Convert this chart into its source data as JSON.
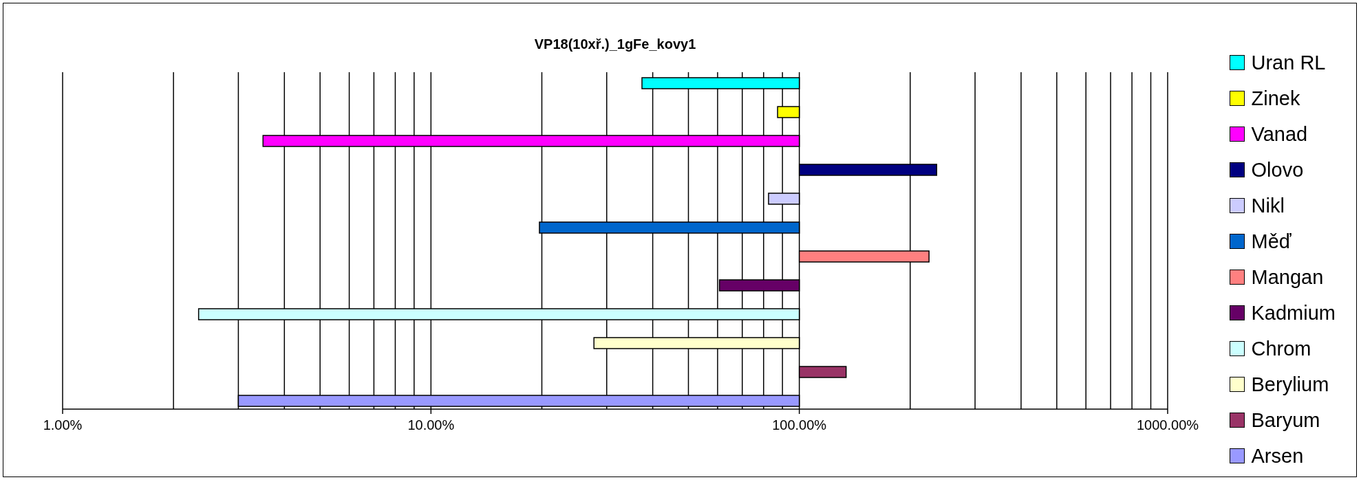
{
  "chart_data": {
    "type": "bar",
    "title": "VP18(10xř.)_1gFe_kovy1",
    "orientation": "horizontal",
    "log": "x",
    "categories": [
      null
    ],
    "xlim": [
      1,
      1000
    ],
    "xticks": [
      {
        "value": 1,
        "label": "1.00%"
      },
      {
        "value": 2,
        "label": null
      },
      {
        "value": 3,
        "label": null
      },
      {
        "value": 4,
        "label": null
      },
      {
        "value": 5,
        "label": null
      },
      {
        "value": 6,
        "label": null
      },
      {
        "value": 7,
        "label": null
      },
      {
        "value": 8,
        "label": null
      },
      {
        "value": 9,
        "label": null
      },
      {
        "value": 10,
        "label": "10.00%"
      },
      {
        "value": 20,
        "label": null
      },
      {
        "value": 30,
        "label": null
      },
      {
        "value": 40,
        "label": null
      },
      {
        "value": 50,
        "label": null
      },
      {
        "value": 60,
        "label": null
      },
      {
        "value": 70,
        "label": null
      },
      {
        "value": 80,
        "label": null
      },
      {
        "value": 90,
        "label": null
      },
      {
        "value": 100,
        "label": "100.00%"
      },
      {
        "value": 200,
        "label": null
      },
      {
        "value": 300,
        "label": null
      },
      {
        "value": 400,
        "label": null
      },
      {
        "value": 500,
        "label": null
      },
      {
        "value": 600,
        "label": null
      },
      {
        "value": 700,
        "label": null
      },
      {
        "value": 800,
        "label": null
      },
      {
        "value": 900,
        "label": null
      },
      {
        "value": 1000,
        "label": "1000.00%"
      }
    ],
    "grid": "x",
    "legend": "right",
    "tick_labels": "x",
    "series": [
      {
        "name": "Uran RL",
        "color": "#00ffff",
        "base": [
          100
        ],
        "values": [
          -62.6
        ]
      },
      {
        "name": "Zinek",
        "color": "#ffff00",
        "base": [
          100
        ],
        "values": [
          -12.7
        ]
      },
      {
        "name": "Vanad",
        "color": "#ff00ff",
        "base": [
          100
        ],
        "values": [
          -96.5
        ]
      },
      {
        "name": "Olovo",
        "color": "#000080",
        "base": [
          100
        ],
        "values": [
          136
        ]
      },
      {
        "name": "Nikl",
        "color": "#ccccff",
        "base": [
          100
        ],
        "values": [
          -17.5
        ]
      },
      {
        "name": "Měď",
        "color": "#0066cc",
        "base": [
          100
        ],
        "values": [
          -80.3
        ]
      },
      {
        "name": "Mangan",
        "color": "#ff8080",
        "base": [
          100
        ],
        "values": [
          125
        ]
      },
      {
        "name": "Kadmium",
        "color": "#660066",
        "base": [
          100
        ],
        "values": [
          -39.3
        ]
      },
      {
        "name": "Chrom",
        "color": "#ccffff",
        "base": [
          100
        ],
        "values": [
          -97.66
        ]
      },
      {
        "name": "Berylium",
        "color": "#ffffcc",
        "base": [
          100
        ],
        "values": [
          -72.3
        ]
      },
      {
        "name": "Baryum",
        "color": "#993366",
        "base": [
          100
        ],
        "values": [
          34
        ]
      },
      {
        "name": "Arsen",
        "color": "#9999ff",
        "base": [
          100
        ],
        "values": [
          -97.0
        ]
      }
    ]
  }
}
